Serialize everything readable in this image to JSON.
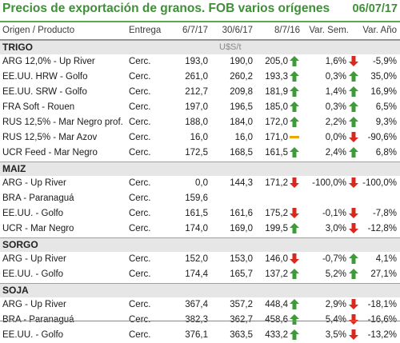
{
  "title": "Precios de exportación de granos. FOB varios orígenes",
  "date": "06/07/17",
  "columns": {
    "origin": "Origen / Producto",
    "delivery": "Entrega",
    "d1": "6/7/17",
    "d2": "30/6/17",
    "d3": "8/7/16",
    "var_sem": "Var. Sem.",
    "var_anio": "Var. Año"
  },
  "colors": {
    "up": "#3f9b3a",
    "down": "#d9281e",
    "flat": "#f0a500",
    "accent": "#3f8f38",
    "section_bg": "#e6e6e6"
  },
  "sections": [
    {
      "name": "TRIGO",
      "unit": "U$S/t",
      "rows": [
        {
          "origin": "ARG 12,0% - Up River",
          "delivery": "Cerc.",
          "d1": "193,0",
          "d2": "190,0",
          "d3": "205,0",
          "a1": "up",
          "vs": "1,6%",
          "a2": "down",
          "va": "-5,9%"
        },
        {
          "origin": "EE.UU. HRW - Golfo",
          "delivery": "Cerc.",
          "d1": "261,0",
          "d2": "260,2",
          "d3": "193,3",
          "a1": "up",
          "vs": "0,3%",
          "a2": "up",
          "va": "35,0%"
        },
        {
          "origin": "EE.UU. SRW - Golfo",
          "delivery": "Cerc.",
          "d1": "212,7",
          "d2": "209,8",
          "d3": "181,9",
          "a1": "up",
          "vs": "1,4%",
          "a2": "up",
          "va": "16,9%"
        },
        {
          "origin": "FRA Soft - Rouen",
          "delivery": "Cerc.",
          "d1": "197,0",
          "d2": "196,5",
          "d3": "185,0",
          "a1": "up",
          "vs": "0,3%",
          "a2": "up",
          "va": "6,5%"
        },
        {
          "origin": "RUS 12,5% - Mar Negro prof.",
          "delivery": "Cerc.",
          "d1": "188,0",
          "d2": "184,0",
          "d3": "172,0",
          "a1": "up",
          "vs": "2,2%",
          "a2": "up",
          "va": "9,3%"
        },
        {
          "origin": "RUS 12,5% - Mar Azov",
          "delivery": "Cerc.",
          "d1": "16,0",
          "d2": "16,0",
          "d3": "171,0",
          "a1": "flat",
          "vs": "0,0%",
          "a2": "down",
          "va": "-90,6%"
        },
        {
          "origin": "UCR Feed - Mar Negro",
          "delivery": "Cerc.",
          "d1": "172,5",
          "d2": "168,5",
          "d3": "161,5",
          "a1": "up",
          "vs": "2,4%",
          "a2": "up",
          "va": "6,8%"
        }
      ]
    },
    {
      "name": "MAIZ",
      "unit": "",
      "rows": [
        {
          "origin": "ARG - Up River",
          "delivery": "Cerc.",
          "d1": "0,0",
          "d2": "144,3",
          "d3": "171,2",
          "a1": "down",
          "vs": "-100,0%",
          "a2": "down",
          "va": "-100,0%"
        },
        {
          "origin": "BRA - Paranaguá",
          "delivery": "Cerc.",
          "d1": "159,6",
          "d2": "",
          "d3": "",
          "a1": "",
          "vs": "",
          "a2": "",
          "va": ""
        },
        {
          "origin": "EE.UU. - Golfo",
          "delivery": "Cerc.",
          "d1": "161,5",
          "d2": "161,6",
          "d3": "175,2",
          "a1": "down",
          "vs": "-0,1%",
          "a2": "down",
          "va": "-7,8%"
        },
        {
          "origin": "UCR - Mar Negro",
          "delivery": "Cerc.",
          "d1": "174,0",
          "d2": "169,0",
          "d3": "199,5",
          "a1": "up",
          "vs": "3,0%",
          "a2": "down",
          "va": "-12,8%"
        }
      ]
    },
    {
      "name": "SORGO",
      "unit": "",
      "rows": [
        {
          "origin": "ARG - Up River",
          "delivery": "Cerc.",
          "d1": "152,0",
          "d2": "153,0",
          "d3": "146,0",
          "a1": "down",
          "vs": "-0,7%",
          "a2": "up",
          "va": "4,1%"
        },
        {
          "origin": "EE.UU. - Golfo",
          "delivery": "Cerc.",
          "d1": "174,4",
          "d2": "165,7",
          "d3": "137,2",
          "a1": "up",
          "vs": "5,2%",
          "a2": "up",
          "va": "27,1%"
        }
      ]
    },
    {
      "name": "SOJA",
      "unit": "",
      "rows": [
        {
          "origin": "ARG - Up River",
          "delivery": "Cerc.",
          "d1": "367,4",
          "d2": "357,2",
          "d3": "448,4",
          "a1": "up",
          "vs": "2,9%",
          "a2": "down",
          "va": "-18,1%"
        },
        {
          "origin": "BRA - Paranaguá",
          "delivery": "Cerc.",
          "d1": "382,3",
          "d2": "362,7",
          "d3": "458,6",
          "a1": "up",
          "vs": "5,4%",
          "a2": "down",
          "va": "-16,6%"
        },
        {
          "origin": "EE.UU. - Golfo",
          "delivery": "Cerc.",
          "d1": "376,1",
          "d2": "363,5",
          "d3": "433,2",
          "a1": "up",
          "vs": "3,5%",
          "a2": "down",
          "va": "-13,2%"
        }
      ]
    }
  ]
}
